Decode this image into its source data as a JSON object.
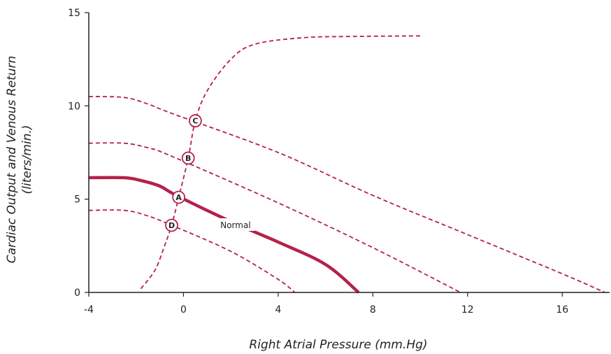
{
  "chart_data": {
    "type": "line",
    "title": "",
    "xlabel": "Right Atrial Pressure (mm.Hg)",
    "ylabel": "Cardiac Output and Venous Return",
    "ylabel_line2": "(liters/min.)",
    "xlim": [
      -4,
      18
    ],
    "ylim": [
      0,
      15
    ],
    "x_ticks": [
      -4,
      0,
      4,
      8,
      12,
      16
    ],
    "y_ticks": [
      0,
      5,
      10,
      15
    ],
    "grid": false,
    "accent_color": "#b5214a",
    "series": [
      {
        "style": "solid",
        "points": [
          [
            -4,
            6.15
          ],
          [
            -2.5,
            6.15
          ],
          [
            -1.8,
            6.0
          ],
          [
            -1.0,
            5.7
          ],
          [
            -0.3,
            5.2
          ],
          [
            2,
            3.8
          ],
          [
            4,
            2.7
          ],
          [
            6,
            1.5
          ],
          [
            7.4,
            0
          ]
        ]
      },
      {
        "style": "dashed",
        "points": [
          [
            -4,
            4.4
          ],
          [
            -2.5,
            4.4
          ],
          [
            -1.5,
            4.1
          ],
          [
            -0.5,
            3.6
          ],
          [
            2,
            2.2
          ],
          [
            4,
            0.7
          ],
          [
            4.7,
            0
          ]
        ]
      },
      {
        "style": "dashed",
        "points": [
          [
            -4,
            8.0
          ],
          [
            -2.5,
            8.0
          ],
          [
            -1.5,
            7.75
          ],
          [
            -0.5,
            7.3
          ],
          [
            4,
            4.8
          ],
          [
            8,
            2.4
          ],
          [
            11.7,
            0
          ]
        ]
      },
      {
        "style": "dashed",
        "points": [
          [
            -4,
            10.5
          ],
          [
            -2.5,
            10.45
          ],
          [
            -1.5,
            10.1
          ],
          [
            -0.5,
            9.6
          ],
          [
            4,
            7.5
          ],
          [
            8,
            5.2
          ],
          [
            12,
            3.1
          ],
          [
            16,
            1.0
          ],
          [
            17.8,
            0
          ]
        ]
      },
      {
        "style": "dashed",
        "points": [
          [
            -1.8,
            0.2
          ],
          [
            -1.2,
            1.2
          ],
          [
            -0.8,
            2.5
          ],
          [
            -0.5,
            3.6
          ],
          [
            -0.2,
            5.1
          ],
          [
            0.2,
            7.2
          ],
          [
            0.5,
            9.2
          ],
          [
            1.0,
            10.8
          ],
          [
            2.0,
            12.5
          ],
          [
            3.0,
            13.3
          ],
          [
            5.0,
            13.65
          ],
          [
            7.0,
            13.72
          ],
          [
            10.0,
            13.75
          ]
        ]
      }
    ],
    "points": [
      {
        "label": "A",
        "x": -0.2,
        "y": 5.1
      },
      {
        "label": "B",
        "x": 0.2,
        "y": 7.2
      },
      {
        "label": "C",
        "x": 0.5,
        "y": 9.2
      },
      {
        "label": "D",
        "x": -0.5,
        "y": 3.6
      }
    ],
    "annotations": [
      {
        "text": "Normal",
        "x": 2.2,
        "y": 3.6
      }
    ]
  }
}
